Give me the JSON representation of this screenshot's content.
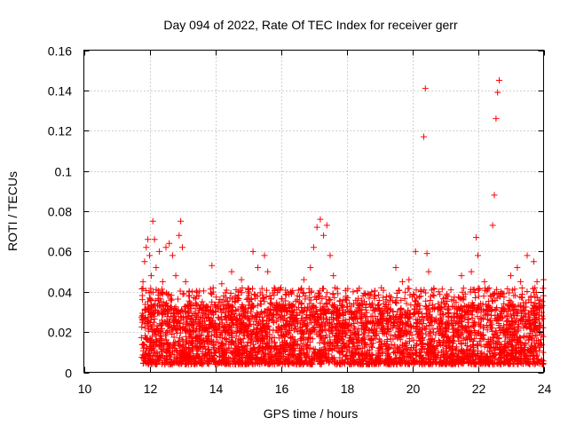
{
  "chart_data": {
    "type": "scatter",
    "title": "Day 094 of 2022, Rate Of TEC Index for receiver gerr",
    "xlabel": "GPS time / hours",
    "ylabel": "ROTI / TECUs",
    "xlim": [
      10,
      24
    ],
    "ylim": [
      0,
      0.16
    ],
    "x_ticks": [
      10,
      12,
      14,
      16,
      18,
      20,
      22,
      24
    ],
    "x_tick_labels": [
      "10",
      "12",
      "14",
      "16",
      "18",
      "20",
      "22",
      "24"
    ],
    "y_ticks": [
      0,
      0.02,
      0.04,
      0.06,
      0.08,
      0.1,
      0.12,
      0.14,
      0.16
    ],
    "y_tick_labels": [
      "0",
      "0.02",
      "0.04",
      "0.06",
      "0.08",
      "0.1",
      "0.12",
      "0.14",
      "0.16"
    ],
    "grid": true,
    "marker": "+",
    "color": "#ff0000",
    "series": [
      {
        "name": "ROTI",
        "points": [
          [
            11.8,
            0.045
          ],
          [
            11.85,
            0.055
          ],
          [
            11.9,
            0.062
          ],
          [
            11.95,
            0.066
          ],
          [
            12.0,
            0.058
          ],
          [
            12.05,
            0.048
          ],
          [
            12.1,
            0.075
          ],
          [
            12.15,
            0.066
          ],
          [
            12.2,
            0.052
          ],
          [
            12.3,
            0.06
          ],
          [
            12.4,
            0.045
          ],
          [
            12.5,
            0.062
          ],
          [
            12.6,
            0.064
          ],
          [
            12.7,
            0.058
          ],
          [
            12.8,
            0.048
          ],
          [
            12.9,
            0.068
          ],
          [
            12.95,
            0.075
          ],
          [
            13.0,
            0.062
          ],
          [
            13.1,
            0.045
          ],
          [
            13.3,
            0.04
          ],
          [
            13.5,
            0.038
          ],
          [
            13.9,
            0.053
          ],
          [
            14.2,
            0.044
          ],
          [
            14.5,
            0.05
          ],
          [
            14.7,
            0.04
          ],
          [
            14.8,
            0.046
          ],
          [
            15.0,
            0.04
          ],
          [
            15.15,
            0.06
          ],
          [
            15.3,
            0.052
          ],
          [
            15.5,
            0.058
          ],
          [
            15.6,
            0.05
          ],
          [
            15.8,
            0.042
          ],
          [
            16.0,
            0.042
          ],
          [
            16.3,
            0.04
          ],
          [
            16.5,
            0.038
          ],
          [
            16.7,
            0.046
          ],
          [
            16.9,
            0.052
          ],
          [
            17.0,
            0.062
          ],
          [
            17.1,
            0.072
          ],
          [
            17.2,
            0.076
          ],
          [
            17.3,
            0.068
          ],
          [
            17.4,
            0.073
          ],
          [
            17.5,
            0.058
          ],
          [
            17.6,
            0.048
          ],
          [
            17.9,
            0.036
          ],
          [
            18.2,
            0.04
          ],
          [
            18.6,
            0.034
          ],
          [
            19.0,
            0.032
          ],
          [
            19.2,
            0.036
          ],
          [
            19.5,
            0.052
          ],
          [
            19.7,
            0.045
          ],
          [
            19.9,
            0.046
          ],
          [
            20.1,
            0.06
          ],
          [
            20.35,
            0.117
          ],
          [
            20.4,
            0.141
          ],
          [
            20.45,
            0.059
          ],
          [
            20.5,
            0.05
          ],
          [
            20.8,
            0.04
          ],
          [
            21.2,
            0.036
          ],
          [
            21.5,
            0.048
          ],
          [
            21.8,
            0.05
          ],
          [
            21.95,
            0.067
          ],
          [
            22.0,
            0.058
          ],
          [
            22.2,
            0.045
          ],
          [
            22.45,
            0.073
          ],
          [
            22.5,
            0.088
          ],
          [
            22.55,
            0.126
          ],
          [
            22.6,
            0.139
          ],
          [
            22.65,
            0.145
          ],
          [
            22.7,
            0.04
          ],
          [
            23.0,
            0.048
          ],
          [
            23.2,
            0.052
          ],
          [
            23.3,
            0.045
          ],
          [
            23.5,
            0.058
          ],
          [
            23.7,
            0.055
          ],
          [
            23.8,
            0.045
          ],
          [
            24.0,
            0.046
          ]
        ]
      }
    ],
    "bulk_band": {
      "description": "dense cloud of points between 11.75h and 24h",
      "x_start": 11.75,
      "x_end": 24,
      "y_floor": 0.004,
      "y_typical_max": 0.03,
      "point_count": 3400
    }
  }
}
